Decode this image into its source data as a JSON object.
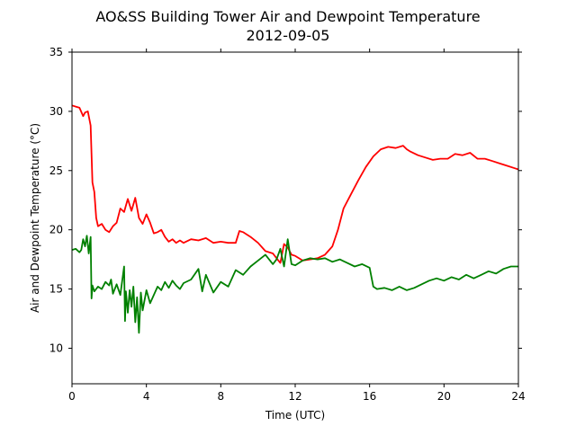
{
  "chart_data": {
    "type": "line",
    "title": "AO&SS Building Tower Air and Dewpoint Temperature",
    "subtitle": "2012-09-05",
    "xlabel": "Time (UTC)",
    "ylabel": "Air and Dewpoint Temperature (°C)",
    "xlim": [
      0,
      24
    ],
    "ylim": [
      7,
      35
    ],
    "xticks": [
      0,
      4,
      8,
      12,
      16,
      20,
      24
    ],
    "yticks": [
      10,
      15,
      20,
      25,
      30,
      35
    ],
    "grid": false,
    "legend": "none",
    "series": [
      {
        "color": "#ff0000",
        "x": [
          0,
          0.2,
          0.4,
          0.6,
          0.7,
          0.85,
          1.0,
          1.1,
          1.2,
          1.3,
          1.4,
          1.6,
          1.8,
          2.0,
          2.2,
          2.4,
          2.6,
          2.8,
          3.0,
          3.2,
          3.4,
          3.6,
          3.8,
          4.0,
          4.2,
          4.4,
          4.6,
          4.8,
          5.0,
          5.2,
          5.4,
          5.6,
          5.8,
          6.0,
          6.4,
          6.8,
          7.2,
          7.6,
          8.0,
          8.4,
          8.8,
          9.0,
          9.2,
          9.6,
          10.0,
          10.4,
          10.8,
          11.0,
          11.2,
          11.4,
          11.6,
          11.8,
          12.0,
          12.2,
          12.4,
          12.8,
          13.2,
          13.6,
          14.0,
          14.3,
          14.6,
          15.0,
          15.4,
          15.8,
          16.2,
          16.6,
          17.0,
          17.4,
          17.8,
          18.0,
          18.2,
          18.6,
          19.0,
          19.4,
          19.8,
          20.2,
          20.6,
          21.0,
          21.4,
          21.8,
          22.2,
          22.6,
          23.0,
          23.4,
          23.8,
          24.0
        ],
        "y": [
          30.5,
          30.4,
          30.3,
          29.6,
          29.9,
          30.0,
          28.8,
          24.0,
          23.2,
          21.0,
          20.3,
          20.5,
          20.0,
          19.8,
          20.3,
          20.6,
          21.8,
          21.5,
          22.6,
          21.6,
          22.7,
          21.0,
          20.5,
          21.3,
          20.6,
          19.7,
          19.8,
          20.0,
          19.4,
          19.0,
          19.2,
          18.9,
          19.1,
          18.9,
          19.2,
          19.1,
          19.3,
          18.9,
          19.0,
          18.9,
          18.9,
          19.9,
          19.8,
          19.4,
          18.9,
          18.2,
          18.0,
          17.6,
          17.2,
          18.8,
          18.5,
          17.9,
          17.8,
          17.6,
          17.4,
          17.5,
          17.6,
          17.9,
          18.6,
          20.0,
          21.8,
          23.0,
          24.2,
          25.3,
          26.2,
          26.8,
          27.0,
          26.9,
          27.1,
          26.8,
          26.6,
          26.3,
          26.1,
          25.9,
          26.0,
          26.0,
          26.4,
          26.3,
          26.5,
          26.0,
          26.0,
          25.8,
          25.6,
          25.4,
          25.2,
          25.1
        ]
      },
      {
        "color": "#008000",
        "x": [
          0,
          0.2,
          0.4,
          0.5,
          0.6,
          0.7,
          0.8,
          0.9,
          1.0,
          1.05,
          1.1,
          1.2,
          1.4,
          1.6,
          1.8,
          2.0,
          2.1,
          2.2,
          2.4,
          2.6,
          2.8,
          2.85,
          2.9,
          3.0,
          3.1,
          3.2,
          3.3,
          3.4,
          3.5,
          3.6,
          3.7,
          3.8,
          4.0,
          4.2,
          4.4,
          4.6,
          4.8,
          5.0,
          5.2,
          5.4,
          5.6,
          5.8,
          6.0,
          6.4,
          6.8,
          7.0,
          7.2,
          7.6,
          8.0,
          8.4,
          8.8,
          9.2,
          9.6,
          10.0,
          10.4,
          10.8,
          11.0,
          11.2,
          11.4,
          11.6,
          11.8,
          12.0,
          12.4,
          12.8,
          13.2,
          13.6,
          14.0,
          14.4,
          14.8,
          15.2,
          15.6,
          16.0,
          16.2,
          16.4,
          16.8,
          17.2,
          17.6,
          18.0,
          18.4,
          18.8,
          19.2,
          19.6,
          20.0,
          20.4,
          20.8,
          21.2,
          21.6,
          22.0,
          22.4,
          22.8,
          23.2,
          23.6,
          24.0
        ],
        "y": [
          18.3,
          18.4,
          18.1,
          18.3,
          19.2,
          18.6,
          19.5,
          18.0,
          19.4,
          14.2,
          15.3,
          14.8,
          15.2,
          15.0,
          15.6,
          15.3,
          15.8,
          14.6,
          15.4,
          14.5,
          16.9,
          12.3,
          14.8,
          13.0,
          14.9,
          13.5,
          15.2,
          12.2,
          14.3,
          11.3,
          14.7,
          13.2,
          14.9,
          13.8,
          14.5,
          15.2,
          14.9,
          15.6,
          15.1,
          15.7,
          15.3,
          15.0,
          15.5,
          15.8,
          16.7,
          14.8,
          16.2,
          14.7,
          15.6,
          15.2,
          16.6,
          16.2,
          16.9,
          17.4,
          17.9,
          17.1,
          17.5,
          18.4,
          16.9,
          19.2,
          17.1,
          17.0,
          17.4,
          17.6,
          17.5,
          17.6,
          17.3,
          17.5,
          17.2,
          16.9,
          17.1,
          16.8,
          15.2,
          15.0,
          15.1,
          14.9,
          15.2,
          14.9,
          15.1,
          15.4,
          15.7,
          15.9,
          15.7,
          16.0,
          15.8,
          16.2,
          15.9,
          16.2,
          16.5,
          16.3,
          16.7,
          16.9,
          16.9
        ]
      }
    ]
  }
}
